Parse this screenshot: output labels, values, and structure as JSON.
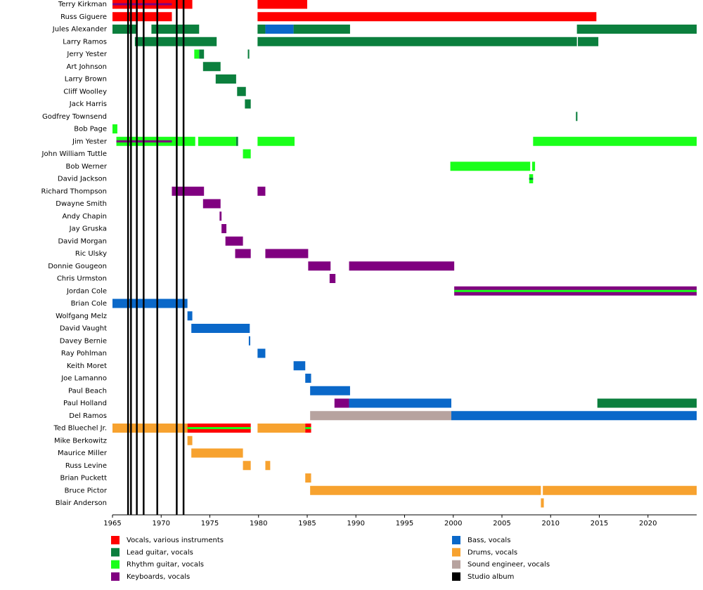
{
  "chart_data": {
    "type": "timeline",
    "xlim": [
      1965,
      2025
    ],
    "xticks": [
      1965,
      1970,
      1975,
      1980,
      1985,
      1990,
      1995,
      2000,
      2005,
      2010,
      2015,
      2020
    ],
    "roles": [
      {
        "name": "Vocals, various instruments",
        "color": "#ff0000"
      },
      {
        "name": "Lead guitar, vocals",
        "color": "#0b7f3d"
      },
      {
        "name": "Rhythm guitar, vocals",
        "color": "#1aff1a"
      },
      {
        "name": "Keyboards, vocals",
        "color": "#800080"
      },
      {
        "name": "Bass, vocals",
        "color": "#0a68c9"
      },
      {
        "name": "Drums, vocals",
        "color": "#f7a22f"
      },
      {
        "name": "Sound engineer, vocals",
        "color": "#b7a39f"
      }
    ],
    "albums": {
      "name": "Studio album",
      "color": "#000000",
      "dates": [
        1966.6,
        1966.9,
        1967.5,
        1968.2,
        1969.6,
        1971.6,
        1972.3
      ]
    },
    "members": [
      {
        "name": "Terry Kirkman",
        "spans": [
          {
            "start": 1965,
            "end": 1973.2,
            "role": "Vocals, various instruments"
          },
          {
            "start": 1965,
            "end": 1971.1,
            "role": "Keyboards, vocals"
          },
          {
            "start": 1979.9,
            "end": 1985,
            "role": "Vocals, various instruments"
          }
        ]
      },
      {
        "name": "Russ Giguere",
        "spans": [
          {
            "start": 1965,
            "end": 1971.1,
            "role": "Vocals, various instruments"
          },
          {
            "start": 1979.9,
            "end": 2014.7,
            "role": "Vocals, various instruments"
          }
        ]
      },
      {
        "name": "Jules Alexander",
        "spans": [
          {
            "start": 1965,
            "end": 1967.5,
            "role": "Lead guitar, vocals"
          },
          {
            "start": 1969,
            "end": 1973.9,
            "role": "Lead guitar, vocals"
          },
          {
            "start": 1979.9,
            "end": 1980.7,
            "role": "Lead guitar, vocals"
          },
          {
            "start": 1980.7,
            "end": 1983.6,
            "role": "Bass, vocals"
          },
          {
            "start": 1983.6,
            "end": 1989.4,
            "role": "Lead guitar, vocals"
          },
          {
            "start": 2012.7,
            "end": 2025,
            "role": "Lead guitar, vocals"
          }
        ]
      },
      {
        "name": "Larry Ramos",
        "spans": [
          {
            "start": 1967.3,
            "end": 1975.7,
            "role": "Lead guitar, vocals"
          },
          {
            "start": 1979.9,
            "end": 2012.7,
            "role": "Lead guitar, vocals"
          },
          {
            "start": 2012.8,
            "end": 2014.9,
            "role": "Lead guitar, vocals"
          }
        ]
      },
      {
        "name": "Jerry Yester",
        "spans": [
          {
            "start": 1973.4,
            "end": 1973.9,
            "role": "Rhythm guitar, vocals"
          },
          {
            "start": 1973.9,
            "end": 1974.4,
            "role": "Lead guitar, vocals"
          },
          {
            "start": 1978.9,
            "end": 1979.05,
            "role": "Lead guitar, vocals"
          }
        ]
      },
      {
        "name": "Art Johnson",
        "spans": [
          {
            "start": 1974.3,
            "end": 1976.1,
            "role": "Lead guitar, vocals"
          }
        ]
      },
      {
        "name": "Larry Brown",
        "spans": [
          {
            "start": 1975.6,
            "end": 1977.7,
            "role": "Lead guitar, vocals"
          }
        ]
      },
      {
        "name": "Cliff Woolley",
        "spans": [
          {
            "start": 1977.8,
            "end": 1978.7,
            "role": "Lead guitar, vocals"
          }
        ]
      },
      {
        "name": "Jack Harris",
        "spans": [
          {
            "start": 1978.6,
            "end": 1979.2,
            "role": "Lead guitar, vocals"
          }
        ]
      },
      {
        "name": "Godfrey Townsend",
        "spans": [
          {
            "start": 2012.6,
            "end": 2012.75,
            "role": "Lead guitar, vocals"
          }
        ]
      },
      {
        "name": "Bob Page",
        "spans": [
          {
            "start": 1965,
            "end": 1965.5,
            "role": "Rhythm guitar, vocals"
          }
        ]
      },
      {
        "name": "Jim Yester",
        "spans": [
          {
            "start": 1965.4,
            "end": 1973.5,
            "role": "Rhythm guitar, vocals"
          },
          {
            "start": 1965.4,
            "end": 1971.1,
            "role": "Keyboards, vocals"
          },
          {
            "start": 1973.8,
            "end": 1977.7,
            "role": "Rhythm guitar, vocals"
          },
          {
            "start": 1977.7,
            "end": 1977.9,
            "role": "Lead guitar, vocals"
          },
          {
            "start": 1979.9,
            "end": 1983.7,
            "role": "Rhythm guitar, vocals"
          },
          {
            "start": 2008.2,
            "end": 2025,
            "role": "Rhythm guitar, vocals"
          }
        ]
      },
      {
        "name": "John William Tuttle",
        "spans": [
          {
            "start": 1978.4,
            "end": 1979.2,
            "role": "Rhythm guitar, vocals"
          }
        ]
      },
      {
        "name": "Bob Werner",
        "spans": [
          {
            "start": 1999.7,
            "end": 2007.9,
            "role": "Rhythm guitar, vocals"
          },
          {
            "start": 2008.1,
            "end": 2008.4,
            "role": "Rhythm guitar, vocals"
          }
        ]
      },
      {
        "name": "David Jackson",
        "spans": [
          {
            "start": 2007.8,
            "end": 2008.2,
            "role": "Rhythm guitar, vocals"
          },
          {
            "start": 2007.8,
            "end": 2008.2,
            "role": "Lead guitar, vocals"
          }
        ]
      },
      {
        "name": "Richard Thompson",
        "spans": [
          {
            "start": 1971.1,
            "end": 1974.4,
            "role": "Keyboards, vocals"
          },
          {
            "start": 1979.9,
            "end": 1980.7,
            "role": "Keyboards, vocals"
          }
        ]
      },
      {
        "name": "Dwayne Smith",
        "spans": [
          {
            "start": 1974.3,
            "end": 1976.1,
            "role": "Keyboards, vocals"
          }
        ]
      },
      {
        "name": "Andy Chapin",
        "spans": [
          {
            "start": 1976,
            "end": 1976.2,
            "role": "Keyboards, vocals"
          }
        ]
      },
      {
        "name": "Jay Gruska",
        "spans": [
          {
            "start": 1976.2,
            "end": 1976.7,
            "role": "Keyboards, vocals"
          }
        ]
      },
      {
        "name": "David Morgan",
        "spans": [
          {
            "start": 1976.6,
            "end": 1978.4,
            "role": "Keyboards, vocals"
          }
        ]
      },
      {
        "name": "Ric Ulsky",
        "spans": [
          {
            "start": 1977.6,
            "end": 1979.2,
            "role": "Keyboards, vocals"
          },
          {
            "start": 1980.7,
            "end": 1985.1,
            "role": "Keyboards, vocals"
          }
        ]
      },
      {
        "name": "Donnie Gougeon",
        "spans": [
          {
            "start": 1985.1,
            "end": 1987.4,
            "role": "Keyboards, vocals"
          },
          {
            "start": 1989.3,
            "end": 2000.1,
            "role": "Keyboards, vocals"
          }
        ]
      },
      {
        "name": "Chris Urmston",
        "spans": [
          {
            "start": 1987.3,
            "end": 1987.9,
            "role": "Keyboards, vocals"
          }
        ]
      },
      {
        "name": "Jordan Cole",
        "spans": [
          {
            "start": 2000.1,
            "end": 2025,
            "role": "Keyboards, vocals"
          },
          {
            "start": 2000.1,
            "end": 2025,
            "role": "Rhythm guitar, vocals"
          }
        ]
      },
      {
        "name": "Brian Cole",
        "spans": [
          {
            "start": 1965,
            "end": 1972.7,
            "role": "Bass, vocals"
          }
        ]
      },
      {
        "name": "Wolfgang Melz",
        "spans": [
          {
            "start": 1972.7,
            "end": 1973.2,
            "role": "Bass, vocals"
          }
        ]
      },
      {
        "name": "David Vaught",
        "spans": [
          {
            "start": 1973.1,
            "end": 1979.1,
            "role": "Bass, vocals"
          }
        ]
      },
      {
        "name": "Davey Bernie",
        "spans": [
          {
            "start": 1979,
            "end": 1979.15,
            "role": "Bass, vocals"
          }
        ]
      },
      {
        "name": "Ray Pohlman",
        "spans": [
          {
            "start": 1979.9,
            "end": 1980.7,
            "role": "Bass, vocals"
          }
        ]
      },
      {
        "name": "Keith Moret",
        "spans": [
          {
            "start": 1983.6,
            "end": 1984.8,
            "role": "Bass, vocals"
          }
        ]
      },
      {
        "name": "Joe Lamanno",
        "spans": [
          {
            "start": 1984.8,
            "end": 1985.4,
            "role": "Bass, vocals"
          }
        ]
      },
      {
        "name": "Paul Beach",
        "spans": [
          {
            "start": 1985.3,
            "end": 1989.4,
            "role": "Bass, vocals"
          }
        ]
      },
      {
        "name": "Paul Holland",
        "spans": [
          {
            "start": 1987.8,
            "end": 1989.3,
            "role": "Keyboards, vocals"
          },
          {
            "start": 1989.3,
            "end": 1999.8,
            "role": "Bass, vocals"
          },
          {
            "start": 2014.8,
            "end": 2025,
            "role": "Lead guitar, vocals"
          }
        ]
      },
      {
        "name": "Del Ramos",
        "spans": [
          {
            "start": 1985.3,
            "end": 1999.8,
            "role": "Sound engineer, vocals"
          },
          {
            "start": 1999.8,
            "end": 2025,
            "role": "Bass, vocals"
          }
        ]
      },
      {
        "name": "Ted Bluechel Jr.",
        "spans": [
          {
            "start": 1965,
            "end": 1972.7,
            "role": "Drums, vocals"
          },
          {
            "start": 1972.7,
            "end": 1979.2,
            "role": "Vocals, various instruments"
          },
          {
            "start": 1972.7,
            "end": 1979.2,
            "role": "Rhythm guitar, vocals"
          },
          {
            "start": 1979.9,
            "end": 1984.8,
            "role": "Drums, vocals"
          },
          {
            "start": 1984.8,
            "end": 1985.4,
            "role": "Vocals, various instruments"
          },
          {
            "start": 1984.8,
            "end": 1985.4,
            "role": "Rhythm guitar, vocals"
          }
        ]
      },
      {
        "name": "Mike Berkowitz",
        "spans": [
          {
            "start": 1972.7,
            "end": 1973.2,
            "role": "Drums, vocals"
          }
        ]
      },
      {
        "name": "Maurice Miller",
        "spans": [
          {
            "start": 1973.1,
            "end": 1978.4,
            "role": "Drums, vocals"
          }
        ]
      },
      {
        "name": "Russ Levine",
        "spans": [
          {
            "start": 1978.4,
            "end": 1979.2,
            "role": "Drums, vocals"
          },
          {
            "start": 1980.7,
            "end": 1981.2,
            "role": "Drums, vocals"
          }
        ]
      },
      {
        "name": "Brian Puckett",
        "spans": [
          {
            "start": 1984.8,
            "end": 1985.4,
            "role": "Drums, vocals"
          }
        ]
      },
      {
        "name": "Bruce Pictor",
        "spans": [
          {
            "start": 1985.3,
            "end": 2009,
            "role": "Drums, vocals"
          },
          {
            "start": 2009.2,
            "end": 2025,
            "role": "Drums, vocals"
          }
        ]
      },
      {
        "name": "Blair Anderson",
        "spans": [
          {
            "start": 2009,
            "end": 2009.3,
            "role": "Drums, vocals"
          }
        ]
      }
    ]
  }
}
